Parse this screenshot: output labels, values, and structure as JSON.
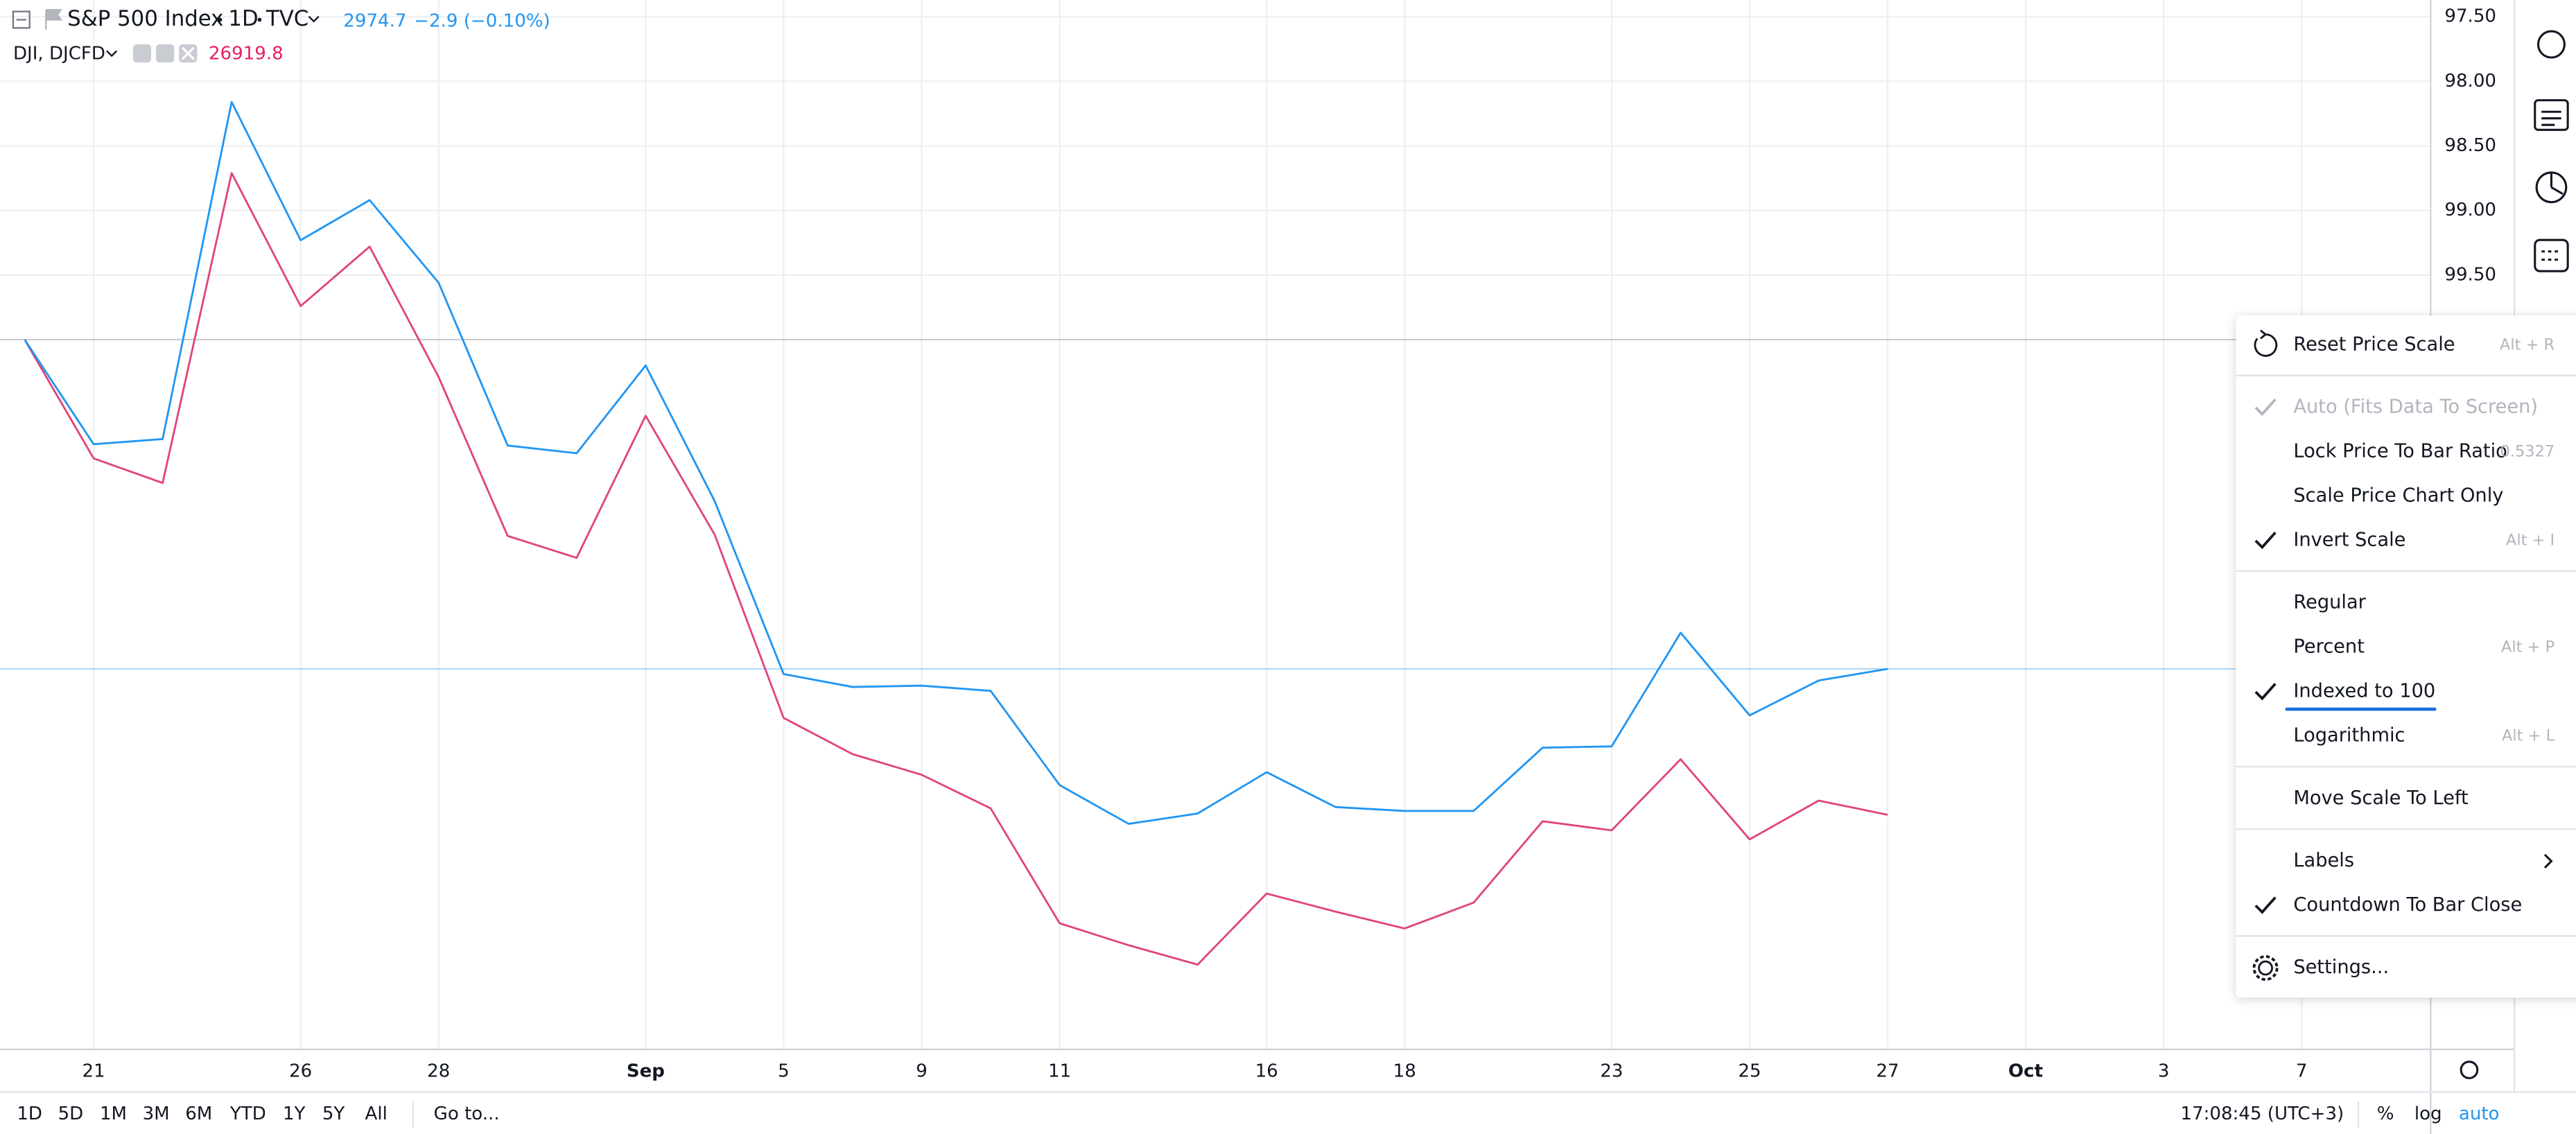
{
  "header": {
    "interval": "1D",
    "exchange": "TVC",
    "sp_last": 2974.7,
    "sp_change": "−2.9 (−0.10%)",
    "dji_last": 26919.8
  },
  "chart_data": {
    "type": "line",
    "inverted": true,
    "grid": true,
    "categories": [
      null,
      "21",
      null,
      null,
      "26",
      null,
      "28",
      null,
      null,
      "Sep",
      null,
      "5",
      null,
      "9",
      null,
      "11",
      null,
      null,
      "16",
      null,
      "18",
      null,
      null,
      "23",
      null,
      "25",
      null,
      "27",
      null,
      "Oct",
      null,
      "3",
      null,
      "7"
    ],
    "series": [
      {
        "name": "S&P 500 Index",
        "color": "#2196f3",
        "values": [
          100,
          100.81,
          100.77,
          98.16,
          99.23,
          98.92,
          99.56,
          100.82,
          100.88,
          100.2,
          101.25,
          102.59,
          102.69,
          102.68,
          102.72,
          103.45,
          103.75,
          103.67,
          103.35,
          103.62,
          103.65,
          103.65,
          103.16,
          103.15,
          102.27,
          102.91,
          102.64,
          102.55,
          null,
          null,
          null,
          null,
          null,
          null
        ]
      },
      {
        "name": "DJI, DJCFD",
        "color": "#e0457b",
        "values": [
          100,
          100.92,
          101.11,
          98.71,
          99.74,
          99.28,
          100.29,
          101.52,
          101.69,
          100.59,
          101.51,
          102.93,
          103.21,
          103.37,
          103.63,
          104.52,
          104.69,
          104.84,
          104.29,
          104.43,
          104.56,
          104.36,
          103.73,
          103.8,
          103.25,
          103.87,
          103.57,
          103.68,
          null,
          null,
          null,
          null,
          null,
          null
        ]
      }
    ],
    "ylim": [
      97.37,
      105.49
    ],
    "yticks": [
      {
        "value": 97.5,
        "label": "97.50"
      },
      {
        "value": 98,
        "label": "98.00"
      },
      {
        "value": 98.5,
        "label": "98.50"
      },
      {
        "value": 99,
        "label": "99.00"
      },
      {
        "value": 99.5,
        "label": "99.50"
      }
    ]
  },
  "context_menu": {
    "groups": [
      [
        {
          "label": "Reset Price Scale",
          "shortcut": "Alt + R"
        }
      ],
      [
        {
          "label": "Auto (Fits Data To Screen)",
          "checked": true,
          "disabled": true
        },
        {
          "label": "Lock Price To Bar Ratio",
          "shortcut": "0.5327"
        },
        {
          "label": "Scale Price Chart Only"
        },
        {
          "label": "Invert Scale",
          "checked": true,
          "shortcut": "Alt + I"
        }
      ],
      [
        {
          "label": "Regular"
        },
        {
          "label": "Percent",
          "shortcut": "Alt + P"
        },
        {
          "label": "Indexed to 100",
          "checked": true
        },
        {
          "label": "Logarithmic",
          "shortcut": "Alt + L"
        }
      ],
      [
        {
          "label": "Move Scale To Left"
        }
      ],
      [
        {
          "label": "Labels",
          "submenu": true
        },
        {
          "label": "Countdown To Bar Close",
          "checked": true
        }
      ],
      [
        {
          "label": "Settings..."
        }
      ]
    ]
  },
  "bottom_toolbar": {
    "ranges": [
      "1D",
      "5D",
      "1M",
      "3M",
      "6M",
      "YTD",
      "1Y",
      "5Y",
      "All"
    ],
    "goto": "Go to...",
    "clock": "17:08:45 (UTC+3)",
    "percent": "%",
    "log": "log",
    "auto": "auto"
  }
}
